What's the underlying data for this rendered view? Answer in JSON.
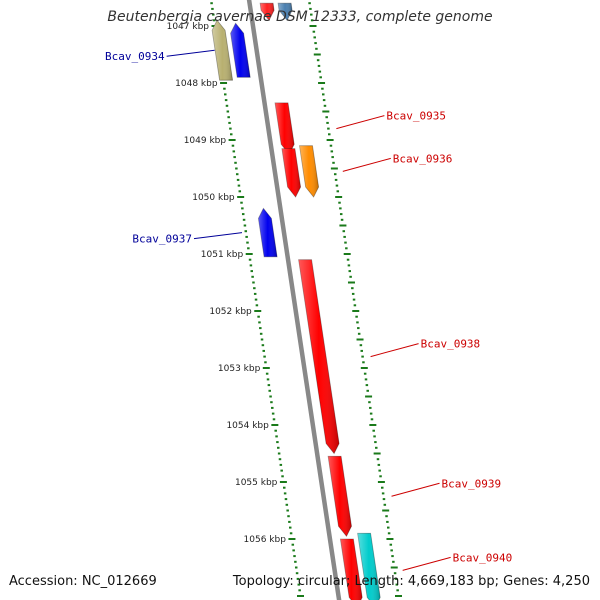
{
  "title": "Beutenbergia cavernae DSM 12333, complete genome",
  "accession": "Accession: NC_012669",
  "summary": "Topology: circular; Length: 4,669,183 bp; Genes: 4,250",
  "colors": {
    "backbone": "#888888",
    "tick": "#1a7a1a",
    "forward_label": "#cc0000",
    "reverse_label": "#000099"
  },
  "scale": {
    "labels": [
      "1047 kbp",
      "1048 kbp",
      "1049 kbp",
      "1050 kbp",
      "1051 kbp",
      "1052 kbp",
      "1053 kbp",
      "1054 kbp",
      "1055 kbp",
      "1056 kbp"
    ]
  },
  "genes": [
    {
      "name": "",
      "strand": "+",
      "track": 1,
      "start_kbp": 1046.6,
      "end_kbp": 1046.9,
      "color": "#ff2020"
    },
    {
      "name": "",
      "strand": "+",
      "track": 2,
      "start_kbp": 1046.6,
      "end_kbp": 1046.9,
      "color": "#4a7fb0"
    },
    {
      "name": "Bcav_0934",
      "strand": "-",
      "track": 2,
      "start_kbp": 1046.9,
      "end_kbp": 1047.95,
      "color": "#b8b070"
    },
    {
      "name": "",
      "strand": "-",
      "track": 1,
      "start_kbp": 1046.95,
      "end_kbp": 1047.9,
      "color": "#0000ee"
    },
    {
      "name": "Bcav_0935",
      "strand": "+",
      "track": 1,
      "start_kbp": 1048.35,
      "end_kbp": 1049.25,
      "color": "#ff0000"
    },
    {
      "name": "Bcav_0936",
      "strand": "+",
      "track": 2,
      "start_kbp": 1049.1,
      "end_kbp": 1050.0,
      "color": "#ff8c00"
    },
    {
      "name": "",
      "strand": "+",
      "track": 1,
      "start_kbp": 1049.15,
      "end_kbp": 1050.0,
      "color": "#ff0000"
    },
    {
      "name": "Bcav_0937",
      "strand": "-",
      "track": 1,
      "start_kbp": 1050.2,
      "end_kbp": 1051.05,
      "color": "#0000ee"
    },
    {
      "name": "Bcav_0938",
      "strand": "+",
      "track": 1,
      "start_kbp": 1051.1,
      "end_kbp": 1054.5,
      "color": "#ff0000"
    },
    {
      "name": "Bcav_0939",
      "strand": "+",
      "track": 1,
      "start_kbp": 1054.55,
      "end_kbp": 1055.95,
      "color": "#ff0000"
    },
    {
      "name": "Bcav_0940",
      "strand": "+",
      "track": 2,
      "start_kbp": 1055.9,
      "end_kbp": 1057.2,
      "color": "#00cccc"
    },
    {
      "name": "",
      "strand": "+",
      "track": 1,
      "start_kbp": 1056.0,
      "end_kbp": 1057.2,
      "color": "#ff0000"
    }
  ]
}
